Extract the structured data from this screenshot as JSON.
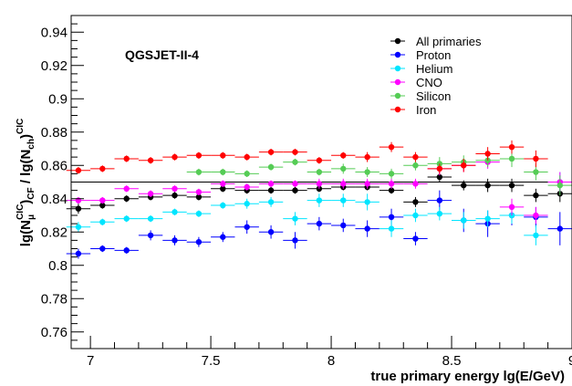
{
  "chart_data": {
    "type": "scatter",
    "title": "",
    "annotation": "QGSJET-II-4",
    "xlabel": "true primary energy lg(E/GeV)",
    "ylabel": "lg(N_μ^CIC)_CF / lg(N_ch)^CIC",
    "ylabel_parts": {
      "base1": "lg(N",
      "sub1": "μ",
      "sup1": "CIC",
      "close1": ")",
      "sub1b": "CF",
      "mid": " / lg(N",
      "sub2": "ch",
      "close2": ")",
      "sup2": "CIC"
    },
    "xlim": [
      6.92,
      9.0
    ],
    "ylim": [
      0.75,
      0.95
    ],
    "x_ticks": [
      "7",
      "7.5",
      "8",
      "8.5",
      "9"
    ],
    "y_ticks": [
      "0.76",
      "0.78",
      "0.8",
      "0.82",
      "0.84",
      "0.86",
      "0.88",
      "0.9",
      "0.92",
      "0.94"
    ],
    "reference_line": 0.85,
    "legend_position": "top-right",
    "grid": false,
    "series": [
      {
        "name": "All primaries",
        "color": "#000000",
        "points": [
          [
            6.95,
            0.834,
            0.003
          ],
          [
            7.05,
            0.836,
            0.002
          ],
          [
            7.15,
            0.84,
            0.002
          ],
          [
            7.25,
            0.841,
            0.002
          ],
          [
            7.35,
            0.842,
            0.002
          ],
          [
            7.45,
            0.841,
            0.002
          ],
          [
            7.55,
            0.846,
            0.002
          ],
          [
            7.65,
            0.845,
            0.002
          ],
          [
            7.75,
            0.845,
            0.002
          ],
          [
            7.85,
            0.845,
            0.002
          ],
          [
            7.95,
            0.846,
            0.002
          ],
          [
            8.05,
            0.847,
            0.002
          ],
          [
            8.15,
            0.847,
            0.002
          ],
          [
            8.25,
            0.845,
            0.002
          ],
          [
            8.35,
            0.838,
            0.003
          ],
          [
            8.45,
            0.853,
            0.003
          ],
          [
            8.55,
            0.848,
            0.003
          ],
          [
            8.65,
            0.848,
            0.004
          ],
          [
            8.75,
            0.848,
            0.004
          ],
          [
            8.85,
            0.842,
            0.004
          ],
          [
            8.95,
            0.843,
            0.005
          ]
        ]
      },
      {
        "name": "Proton",
        "color": "#0000ff",
        "points": [
          [
            6.95,
            0.807,
            0.003
          ],
          [
            7.05,
            0.81,
            0.002
          ],
          [
            7.15,
            0.809,
            0.002
          ],
          [
            7.25,
            0.818,
            0.003
          ],
          [
            7.35,
            0.815,
            0.003
          ],
          [
            7.45,
            0.814,
            0.003
          ],
          [
            7.55,
            0.817,
            0.003
          ],
          [
            7.65,
            0.823,
            0.004
          ],
          [
            7.75,
            0.82,
            0.004
          ],
          [
            7.85,
            0.815,
            0.005
          ],
          [
            7.95,
            0.825,
            0.004
          ],
          [
            8.05,
            0.824,
            0.004
          ],
          [
            8.15,
            0.822,
            0.005
          ],
          [
            8.25,
            0.829,
            0.005
          ],
          [
            8.35,
            0.816,
            0.004
          ],
          [
            8.45,
            0.839,
            0.006
          ],
          [
            8.55,
            0.827,
            0.007
          ],
          [
            8.65,
            0.825,
            0.008
          ],
          [
            8.75,
            0.83,
            0.006
          ],
          [
            8.85,
            0.829,
            0.006
          ],
          [
            8.95,
            0.822,
            0.01
          ]
        ]
      },
      {
        "name": "Helium",
        "color": "#00e5ff",
        "points": [
          [
            6.95,
            0.823,
            0.003
          ],
          [
            7.05,
            0.826,
            0.002
          ],
          [
            7.15,
            0.828,
            0.002
          ],
          [
            7.25,
            0.828,
            0.002
          ],
          [
            7.35,
            0.832,
            0.002
          ],
          [
            7.45,
            0.831,
            0.002
          ],
          [
            7.55,
            0.836,
            0.002
          ],
          [
            7.65,
            0.837,
            0.003
          ],
          [
            7.75,
            0.838,
            0.003
          ],
          [
            7.85,
            0.828,
            0.004
          ],
          [
            7.95,
            0.839,
            0.004
          ],
          [
            8.05,
            0.839,
            0.004
          ],
          [
            8.15,
            0.838,
            0.005
          ],
          [
            8.25,
            0.822,
            0.005
          ],
          [
            8.35,
            0.83,
            0.004
          ],
          [
            8.45,
            0.831,
            0.004
          ],
          [
            8.55,
            0.827,
            0.005
          ],
          [
            8.65,
            0.828,
            0.005
          ],
          [
            8.75,
            0.83,
            0.005
          ],
          [
            8.85,
            0.818,
            0.006
          ],
          [
            8.95,
            0.85,
            0.006
          ]
        ]
      },
      {
        "name": "CNO",
        "color": "#ff00ff",
        "points": [
          [
            6.95,
            0.839,
            0.002
          ],
          [
            7.05,
            0.839,
            0.002
          ],
          [
            7.15,
            0.846,
            0.002
          ],
          [
            7.25,
            0.843,
            0.002
          ],
          [
            7.35,
            0.846,
            0.002
          ],
          [
            7.45,
            0.844,
            0.002
          ],
          [
            7.55,
            0.849,
            0.002
          ],
          [
            7.65,
            0.847,
            0.002
          ],
          [
            7.75,
            0.849,
            0.002
          ],
          [
            7.85,
            0.849,
            0.002
          ],
          [
            7.95,
            0.849,
            0.003
          ],
          [
            8.05,
            0.849,
            0.003
          ],
          [
            8.15,
            0.849,
            0.003
          ],
          [
            8.25,
            0.849,
            0.003
          ],
          [
            8.35,
            0.849,
            0.003
          ],
          [
            8.45,
            0.858,
            0.004
          ],
          [
            8.55,
            0.86,
            0.004
          ],
          [
            8.65,
            0.862,
            0.004
          ],
          [
            8.75,
            0.835,
            0.005
          ],
          [
            8.85,
            0.83,
            0.005
          ],
          [
            8.95,
            0.85,
            0.006
          ]
        ]
      },
      {
        "name": "Silicon",
        "color": "#55cc55",
        "points": [
          [
            7.45,
            0.856,
            0.002
          ],
          [
            7.55,
            0.856,
            0.002
          ],
          [
            7.65,
            0.855,
            0.002
          ],
          [
            7.75,
            0.859,
            0.002
          ],
          [
            7.85,
            0.862,
            0.002
          ],
          [
            7.95,
            0.856,
            0.002
          ],
          [
            8.05,
            0.858,
            0.003
          ],
          [
            8.15,
            0.856,
            0.003
          ],
          [
            8.25,
            0.855,
            0.003
          ],
          [
            8.35,
            0.86,
            0.003
          ],
          [
            8.45,
            0.861,
            0.004
          ],
          [
            8.55,
            0.862,
            0.004
          ],
          [
            8.65,
            0.863,
            0.004
          ],
          [
            8.75,
            0.864,
            0.005
          ],
          [
            8.85,
            0.856,
            0.005
          ],
          [
            8.95,
            0.848,
            0.006
          ]
        ]
      },
      {
        "name": "Iron",
        "color": "#ff0000",
        "points": [
          [
            6.95,
            0.857,
            0.002
          ],
          [
            7.05,
            0.858,
            0.002
          ],
          [
            7.15,
            0.864,
            0.002
          ],
          [
            7.25,
            0.863,
            0.002
          ],
          [
            7.35,
            0.865,
            0.002
          ],
          [
            7.45,
            0.866,
            0.002
          ],
          [
            7.55,
            0.866,
            0.002
          ],
          [
            7.65,
            0.865,
            0.002
          ],
          [
            7.75,
            0.868,
            0.002
          ],
          [
            7.85,
            0.868,
            0.002
          ],
          [
            7.95,
            0.863,
            0.002
          ],
          [
            8.05,
            0.866,
            0.002
          ],
          [
            8.15,
            0.865,
            0.003
          ],
          [
            8.25,
            0.871,
            0.003
          ],
          [
            8.35,
            0.865,
            0.003
          ],
          [
            8.45,
            0.858,
            0.003
          ],
          [
            8.55,
            0.86,
            0.004
          ],
          [
            8.65,
            0.867,
            0.004
          ],
          [
            8.75,
            0.871,
            0.004
          ],
          [
            8.85,
            0.864,
            0.005
          ]
        ]
      }
    ]
  }
}
